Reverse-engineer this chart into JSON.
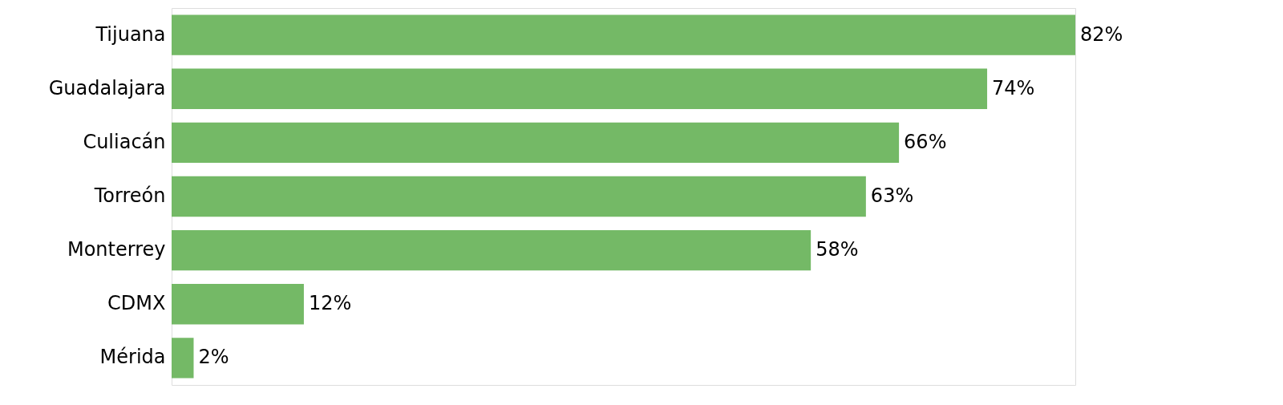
{
  "chart_data": {
    "type": "bar",
    "orientation": "horizontal",
    "categories": [
      "Tijuana",
      "Guadalajara",
      "Culiacán",
      "Torreón",
      "Monterrey",
      "CDMX",
      "Mérida"
    ],
    "values": [
      82,
      74,
      66,
      63,
      58,
      12,
      2
    ],
    "value_labels": [
      "82%",
      "74%",
      "66%",
      "63%",
      "58%",
      "12%",
      "2%"
    ],
    "color": "#74b966",
    "grid": false
  }
}
